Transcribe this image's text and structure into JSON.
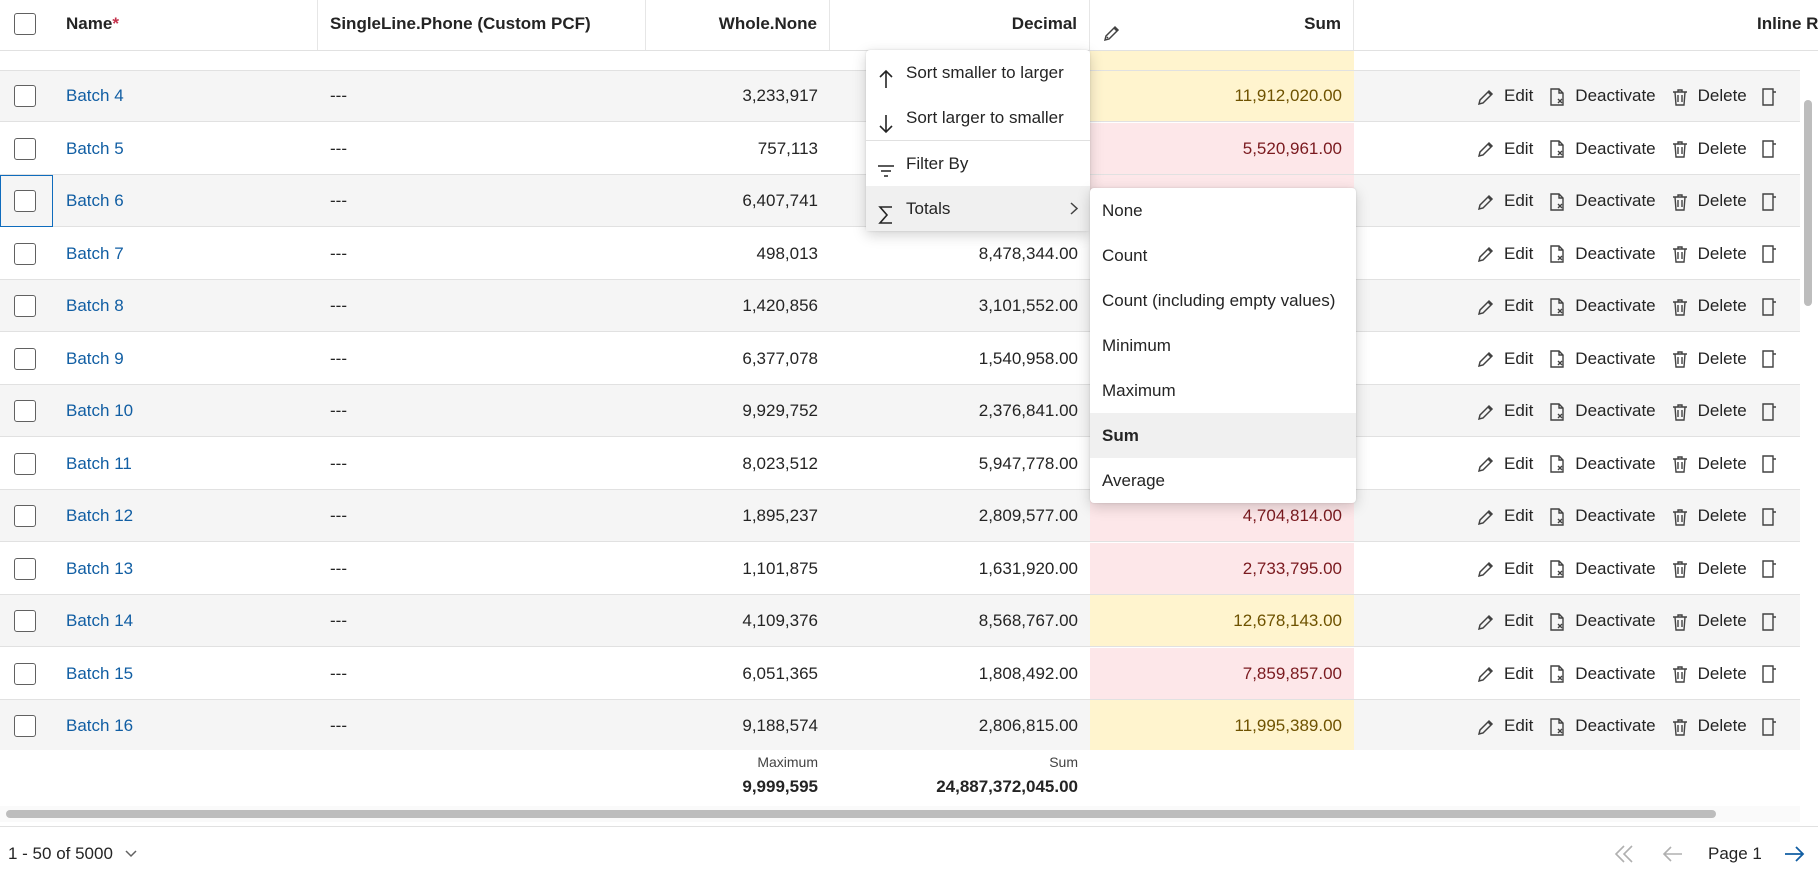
{
  "header": {
    "columns": [
      {
        "label": "Name",
        "required_mark": "*"
      },
      {
        "label": "SingleLine.Phone (Custom PCF)"
      },
      {
        "label": "Whole.None"
      },
      {
        "label": "Decimal"
      },
      {
        "label": "Sum"
      },
      {
        "label": "Inline R"
      }
    ]
  },
  "rows": [
    {
      "name": "Batch 4",
      "phone": "---",
      "whole": "3,233,917",
      "decimal": "",
      "sum": "11,912,020.00",
      "sum_tone": "yellow"
    },
    {
      "name": "Batch 5",
      "phone": "---",
      "whole": "757,113",
      "decimal": "",
      "sum": "5,520,961.00",
      "sum_tone": "red"
    },
    {
      "name": "Batch 6",
      "phone": "---",
      "whole": "6,407,741",
      "decimal": "",
      "sum": "",
      "sum_tone": "red"
    },
    {
      "name": "Batch 7",
      "phone": "---",
      "whole": "498,013",
      "decimal": "8,478,344.00",
      "sum": "",
      "sum_tone": "none"
    },
    {
      "name": "Batch 8",
      "phone": "---",
      "whole": "1,420,856",
      "decimal": "3,101,552.00",
      "sum": "",
      "sum_tone": "none"
    },
    {
      "name": "Batch 9",
      "phone": "---",
      "whole": "6,377,078",
      "decimal": "1,540,958.00",
      "sum": "",
      "sum_tone": "none"
    },
    {
      "name": "Batch 10",
      "phone": "---",
      "whole": "9,929,752",
      "decimal": "2,376,841.00",
      "sum": "",
      "sum_tone": "none"
    },
    {
      "name": "Batch 11",
      "phone": "---",
      "whole": "8,023,512",
      "decimal": "5,947,778.00",
      "sum": "",
      "sum_tone": "none"
    },
    {
      "name": "Batch 12",
      "phone": "---",
      "whole": "1,895,237",
      "decimal": "2,809,577.00",
      "sum": "4,704,814.00",
      "sum_tone": "red"
    },
    {
      "name": "Batch 13",
      "phone": "---",
      "whole": "1,101,875",
      "decimal": "1,631,920.00",
      "sum": "2,733,795.00",
      "sum_tone": "red"
    },
    {
      "name": "Batch 14",
      "phone": "---",
      "whole": "4,109,376",
      "decimal": "8,568,767.00",
      "sum": "12,678,143.00",
      "sum_tone": "yellow"
    },
    {
      "name": "Batch 15",
      "phone": "---",
      "whole": "6,051,365",
      "decimal": "1,808,492.00",
      "sum": "7,859,857.00",
      "sum_tone": "red"
    },
    {
      "name": "Batch 16",
      "phone": "---",
      "whole": "9,188,574",
      "decimal": "2,806,815.00",
      "sum": "11,995,389.00",
      "sum_tone": "yellow"
    }
  ],
  "row_actions": {
    "edit": "Edit",
    "deactivate": "Deactivate",
    "delete": "Delete"
  },
  "totals": {
    "whole_label": "Maximum",
    "whole_value": "9,999,595",
    "decimal_label": "Sum",
    "decimal_value": "24,887,372,045.00"
  },
  "column_menu": {
    "sort_asc": "Sort smaller to larger",
    "sort_desc": "Sort larger to smaller",
    "filter": "Filter By",
    "totals": "Totals"
  },
  "totals_submenu": {
    "options": [
      "None",
      "Count",
      "Count (including empty values)",
      "Minimum",
      "Maximum",
      "Sum",
      "Average"
    ],
    "selected": "Sum"
  },
  "pager": {
    "range": "1 - 50 of 5000",
    "page": "Page 1"
  },
  "colors": {
    "link": "#115ea3",
    "sum_yellow_bg": "#fff4ce",
    "sum_red_bg": "#fde7e9",
    "required": "#c4314b"
  }
}
